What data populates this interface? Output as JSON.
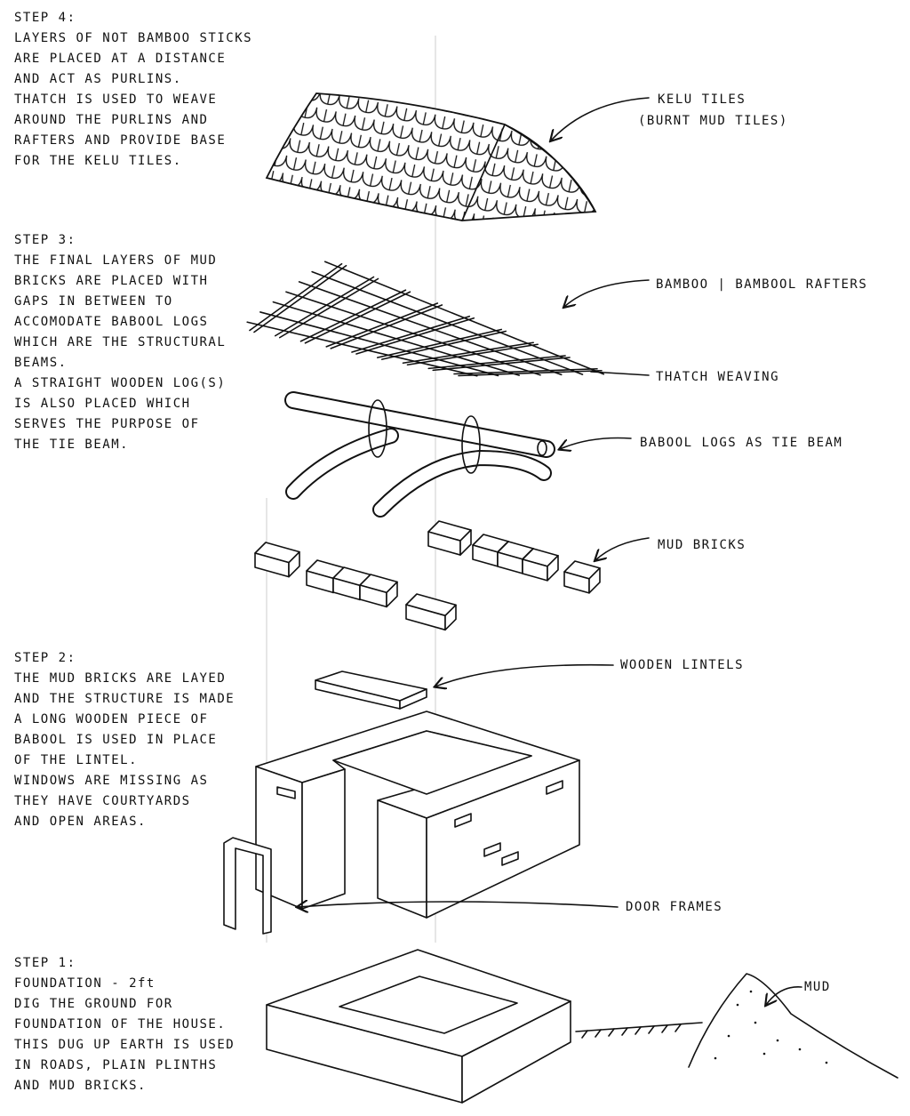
{
  "steps": [
    {
      "lines": [
        "STEP 4:",
        "LAYERS OF NOT BAMBOO STICKS",
        "ARE PLACED AT A DISTANCE",
        "AND ACT AS PURLINS.",
        "THATCH IS USED TO WEAVE",
        "AROUND THE PURLINS AND",
        "RAFTERS AND PROVIDE BASE",
        "FOR THE KELU TILES."
      ]
    },
    {
      "lines": [
        "STEP 3:",
        "THE FINAL LAYERS OF MUD",
        "BRICKS ARE PLACED WITH",
        "GAPS IN BETWEEN TO",
        "ACCOMODATE BABOOL LOGS",
        "WHICH ARE THE STRUCTURAL",
        "BEAMS.",
        "A STRAIGHT WOODEN LOG(S)",
        "IS ALSO PLACED WHICH",
        "SERVES THE PURPOSE OF",
        "THE TIE BEAM."
      ]
    },
    {
      "lines": [
        "STEP 2:",
        "THE MUD BRICKS ARE LAYED",
        "AND THE STRUCTURE IS MADE",
        "A LONG WOODEN PIECE OF",
        "BABOOL IS USED IN PLACE",
        "OF THE LINTEL.",
        "WINDOWS ARE MISSING AS",
        "THEY HAVE COURTYARDS",
        "AND OPEN AREAS."
      ]
    },
    {
      "lines": [
        "STEP 1:",
        "FOUNDATION - 2ft",
        "DIG THE GROUND FOR",
        "FOUNDATION OF THE HOUSE.",
        "THIS DUG UP EARTH IS USED",
        "IN ROADS, PLAIN PLINTHS",
        "AND MUD BRICKS."
      ]
    }
  ],
  "labels": {
    "kelu_tiles": "KELU TILES",
    "kelu_note": "(BURNT MUD TILES)",
    "rafters": "BAMBOO | BAMBOOL RAFTERS",
    "thatch": "THATCH WEAVING",
    "babool": "BABOOL LOGS AS TIE BEAM",
    "mud_bricks": "MUD BRICKS",
    "lintels": "WOODEN LINTELS",
    "door_frames": "DOOR FRAMES",
    "mud": "MUD"
  }
}
